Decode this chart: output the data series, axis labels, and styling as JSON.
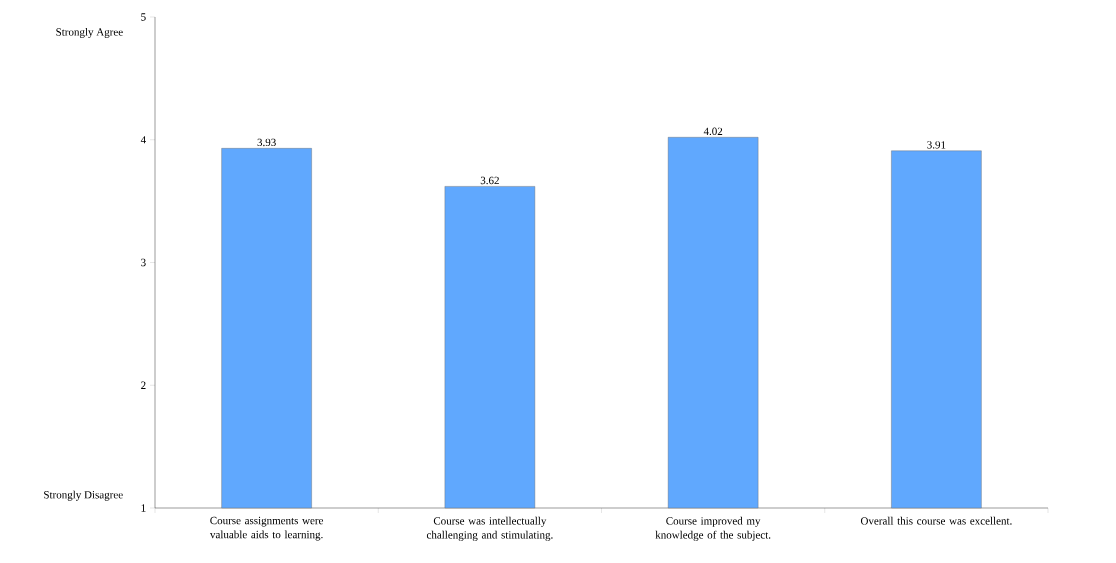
{
  "chart_data": {
    "type": "bar",
    "categories": [
      "Course assignments were valuable aids to learning.",
      "Course was intellectually challenging and stimulating.",
      "Course improved my knowledge of the subject.",
      "Overall this course was excellent."
    ],
    "values": [
      3.93,
      3.62,
      4.02,
      3.91
    ],
    "color": "#60a8fe",
    "ylim": [
      1,
      5
    ],
    "yticks": [
      1,
      2,
      3,
      4,
      5
    ],
    "data_labels": true,
    "annotations": [
      "Strongly Agree",
      "Strongly Disagree"
    ]
  }
}
